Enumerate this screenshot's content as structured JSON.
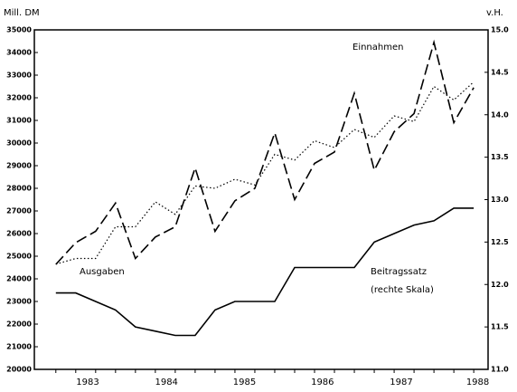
{
  "chart_data": {
    "type": "line",
    "y_axis_label": "Mill. DM",
    "y2_axis_label": "v.H.",
    "x": [
      1982.75,
      1983.0,
      1983.25,
      1983.5,
      1983.75,
      1984.0,
      1984.25,
      1984.5,
      1984.75,
      1985.0,
      1985.25,
      1985.5,
      1985.75,
      1986.0,
      1986.25,
      1986.5,
      1986.75,
      1987.0,
      1987.25,
      1987.5,
      1987.75,
      1988.0
    ],
    "xlim": [
      1982.48,
      1988.18
    ],
    "xticks": [
      {
        "value": 1983.15,
        "label": "1983"
      },
      {
        "value": 1984.14,
        "label": "1984"
      },
      {
        "value": 1985.12,
        "label": "1985"
      },
      {
        "value": 1986.1,
        "label": "1986"
      },
      {
        "value": 1987.09,
        "label": "1987"
      },
      {
        "value": 1988.05,
        "label": "1988"
      }
    ],
    "ylim": [
      20000,
      35000
    ],
    "yticks": [
      20000,
      21000,
      22000,
      23000,
      24000,
      25000,
      26000,
      27000,
      28000,
      29000,
      30000,
      31000,
      32000,
      33000,
      34000,
      35000
    ],
    "y2lim": [
      11,
      15
    ],
    "y2ticks": [
      {
        "value": 11,
        "label": "11.0"
      },
      11.5,
      {
        "value": 12,
        "label": "12.0"
      },
      12.5,
      {
        "value": 13,
        "label": "13.0"
      },
      13.5,
      {
        "value": 14,
        "label": "14.0"
      },
      14.5,
      {
        "value": 15,
        "label": "15.0"
      }
    ],
    "series": [
      {
        "name": "Einnahmen",
        "color": "#000000",
        "style": "dashed",
        "values": [
          24640,
          25600,
          26100,
          27350,
          24900,
          25850,
          26300,
          28900,
          26100,
          27450,
          28000,
          30450,
          27500,
          29100,
          29600,
          32200,
          28800,
          30500,
          31300,
          34450,
          30900,
          32450
        ]
      },
      {
        "name": "Ausgaben",
        "color": "#000000",
        "style": "dotted",
        "values": [
          24650,
          24900,
          24900,
          26300,
          26300,
          27400,
          26850,
          28100,
          28000,
          28400,
          28150,
          29500,
          29250,
          30100,
          29800,
          30600,
          30250,
          31200,
          30950,
          32500,
          31900,
          32700
        ]
      },
      {
        "name": "Beitragssatz",
        "color": "#000000",
        "style": "solid",
        "axis": "y2",
        "values": [
          11.9,
          11.9,
          11.8,
          11.7,
          11.5,
          11.45,
          11.4,
          11.4,
          11.7,
          11.8,
          11.8,
          11.8,
          12.2,
          12.2,
          12.2,
          12.2,
          12.5,
          12.6,
          12.7,
          12.75,
          12.9,
          12.9
        ]
      }
    ],
    "annotations": [
      {
        "text": "Einnahmen"
      },
      {
        "text": "Ausgaben"
      },
      {
        "text": "Beitragssatz"
      },
      {
        "text": "(rechte Skala)"
      }
    ]
  }
}
